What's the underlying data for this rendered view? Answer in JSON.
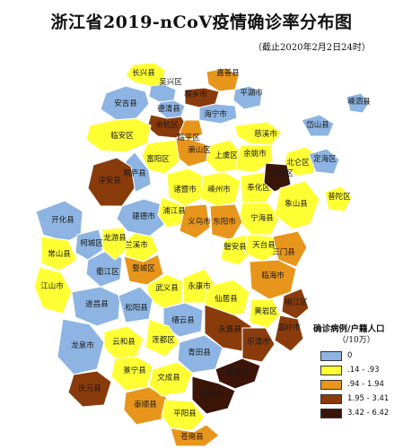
{
  "title": "浙江省2019-nCoV疫情确诊率分布图",
  "subtitle": "（截止2020年2月2日24时）",
  "colors": {
    "class0": "#8db4e2",
    "class1": "#ffff33",
    "class2": "#e8951c",
    "class3": "#8a3b0b",
    "class4": "#3b1408",
    "border": "#ffffff",
    "outline": "#555555"
  },
  "legend": {
    "title": "确诊病例/户籍人口",
    "unit": "（/10万）",
    "classes": [
      {
        "label": "0",
        "class": "class0"
      },
      {
        "label": ".14 - .93",
        "class": "class1"
      },
      {
        "label": ".94 - 1.94",
        "class": "class2"
      },
      {
        "label": "1.95 - 3.41",
        "class": "class3"
      },
      {
        "label": "3.42 - 6.42",
        "class": "class4"
      }
    ]
  },
  "regions": [
    {
      "name": "长兴县",
      "class": "class1"
    },
    {
      "name": "吴兴区",
      "class": "class0"
    },
    {
      "name": "嘉善县",
      "class": "class2"
    },
    {
      "name": "平湖市",
      "class": "class0"
    },
    {
      "name": "安吉县",
      "class": "class0"
    },
    {
      "name": "桐乡市",
      "class": "class3"
    },
    {
      "name": "海宁市",
      "class": "class0"
    },
    {
      "name": "余杭区",
      "class": "class3"
    },
    {
      "name": "临平区",
      "class": "class2"
    },
    {
      "name": "萧山区",
      "class": "class2"
    },
    {
      "name": "上虞区",
      "class": "class1"
    },
    {
      "name": "慈溪市",
      "class": "class1"
    },
    {
      "name": "余姚市",
      "class": "class1"
    },
    {
      "name": "北仑区",
      "class": "class1"
    },
    {
      "name": "临安区",
      "class": "class1"
    },
    {
      "name": "桐庐县",
      "class": "class0"
    },
    {
      "name": "富阳区",
      "class": "class1"
    },
    {
      "name": "淳安县",
      "class": "class3"
    },
    {
      "name": "诸暨市",
      "class": "class1"
    },
    {
      "name": "嵊州市",
      "class": "class1"
    },
    {
      "name": "奉化区",
      "class": "class1"
    },
    {
      "name": "鄞州区",
      "class": "class4"
    },
    {
      "name": "宁海县",
      "class": "class1"
    },
    {
      "name": "象山县",
      "class": "class1"
    },
    {
      "name": "建德市",
      "class": "class0"
    },
    {
      "name": "浦江县",
      "class": "class1"
    },
    {
      "name": "兰溪市",
      "class": "class1"
    },
    {
      "name": "开化县",
      "class": "class0"
    },
    {
      "name": "常山县",
      "class": "class1"
    },
    {
      "name": "柯城区",
      "class": "class0"
    },
    {
      "name": "衢江区",
      "class": "class0"
    },
    {
      "name": "龙游县",
      "class": "class1"
    },
    {
      "name": "婺城区",
      "class": "class2"
    },
    {
      "name": "义乌市",
      "class": "class2"
    },
    {
      "name": "东阳市",
      "class": "class2"
    },
    {
      "name": "武义县",
      "class": "class1"
    },
    {
      "name": "永康市",
      "class": "class1"
    },
    {
      "name": "磐安县",
      "class": "class1"
    },
    {
      "name": "天台县",
      "class": "class1"
    },
    {
      "name": "三门县",
      "class": "class2"
    },
    {
      "name": "临海市",
      "class": "class2"
    },
    {
      "name": "仙居县",
      "class": "class1"
    },
    {
      "name": "椒江区",
      "class": "class3"
    },
    {
      "name": "黄岩区",
      "class": "class1"
    },
    {
      "name": "温岭市",
      "class": "class3"
    },
    {
      "name": "江山市",
      "class": "class1"
    },
    {
      "name": "遂昌县",
      "class": "class0"
    },
    {
      "name": "松阳县",
      "class": "class0"
    },
    {
      "name": "缙云县",
      "class": "class0"
    },
    {
      "name": "莲都区",
      "class": "class1"
    },
    {
      "name": "龙泉市",
      "class": "class0"
    },
    {
      "name": "云和县",
      "class": "class1"
    },
    {
      "name": "青田县",
      "class": "class0"
    },
    {
      "name": "永嘉县",
      "class": "class3"
    },
    {
      "name": "乐清市",
      "class": "class3"
    },
    {
      "name": "景宁县",
      "class": "class1"
    },
    {
      "name": "庆元县",
      "class": "class3"
    },
    {
      "name": "泰顺县",
      "class": "class2"
    },
    {
      "name": "文成县",
      "class": "class1"
    },
    {
      "name": "瑞安市",
      "class": "class4"
    },
    {
      "name": "平阳县",
      "class": "class1"
    },
    {
      "name": "苍南县",
      "class": "class2"
    },
    {
      "name": "鹿城区",
      "class": "class4"
    },
    {
      "name": "普陀区",
      "class": "class1"
    },
    {
      "name": "岱山县",
      "class": "class0"
    },
    {
      "name": "定海区",
      "class": "class0"
    },
    {
      "name": "嵊泗县",
      "class": "class0"
    },
    {
      "name": "德清县",
      "class": "class0"
    }
  ]
}
